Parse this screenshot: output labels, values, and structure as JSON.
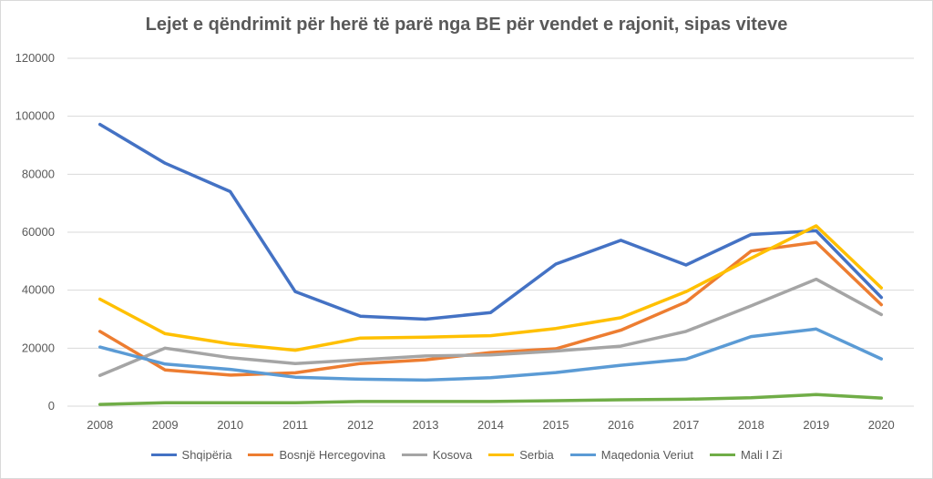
{
  "chart_data": {
    "type": "line",
    "title": "Lejet e qëndrimit për herë të parë nga BE për vendet e rajonit, sipas viteve",
    "xlabel": "",
    "ylabel": "",
    "categories": [
      "2008",
      "2009",
      "2010",
      "2011",
      "2012",
      "2013",
      "2014",
      "2015",
      "2016",
      "2017",
      "2018",
      "2019",
      "2020"
    ],
    "ylim": [
      0,
      120000
    ],
    "yticks": [
      "0",
      "20000",
      "40000",
      "60000",
      "80000",
      "100000",
      "120000"
    ],
    "ytick_values": [
      0,
      20000,
      40000,
      60000,
      80000,
      100000,
      120000
    ],
    "grid": true,
    "legend_position": "bottom",
    "series": [
      {
        "name": "Shqipëria",
        "color": "#4472c4",
        "values": [
          97200,
          83800,
          74000,
          39500,
          31000,
          30000,
          32300,
          49000,
          57200,
          48700,
          59200,
          60500,
          37500
        ]
      },
      {
        "name": "Bosnjë Hercegovina",
        "color": "#ed7d31",
        "values": [
          25800,
          12500,
          10700,
          11500,
          14700,
          16000,
          18500,
          19800,
          26200,
          35900,
          53500,
          56500,
          35000
        ]
      },
      {
        "name": "Kosova",
        "color": "#a5a5a5",
        "values": [
          10600,
          20000,
          16700,
          14700,
          16000,
          17300,
          17700,
          19000,
          20700,
          25800,
          34600,
          43800,
          31600
        ]
      },
      {
        "name": "Serbia",
        "color": "#ffc000",
        "values": [
          36900,
          25000,
          21500,
          19300,
          23500,
          23800,
          24300,
          26800,
          30500,
          39500,
          51000,
          62200,
          40800
        ]
      },
      {
        "name": "Maqedonia Veriut",
        "color": "#5b9bd5",
        "values": [
          20400,
          14500,
          12700,
          10000,
          9300,
          9000,
          9800,
          11600,
          14100,
          16200,
          24000,
          26600,
          16300
        ]
      },
      {
        "name": "Mali I Zi",
        "color": "#70ad47",
        "values": [
          600,
          1200,
          1200,
          1200,
          1600,
          1600,
          1600,
          1900,
          2200,
          2400,
          2900,
          4000,
          2800
        ]
      }
    ]
  }
}
